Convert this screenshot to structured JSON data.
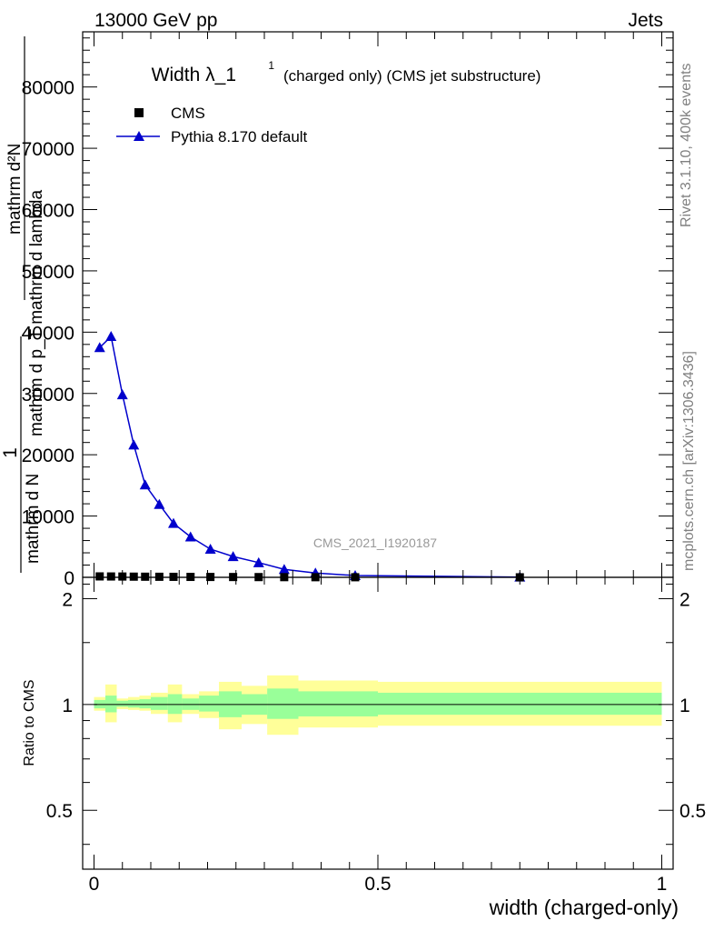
{
  "header": {
    "energy": "13000 GeV pp",
    "category": "Jets"
  },
  "side_labels": {
    "rivet": "Rivet 3.1.10,  400k events",
    "mcplots": "mcplots.cern.ch [arXiv:1306.3436]"
  },
  "watermark": "CMS_2021_I1920187",
  "chart_data": [
    {
      "type": "line",
      "title": "Width λ_1",
      "title_sup": "1",
      "subtitle": "(charged only) (CMS jet substructure)",
      "ylabel_numer": "1",
      "ylabel_denom": "mathrm d N",
      "ylabel_frac_numer": "mathrm d²N",
      "ylabel_frac_denom": "mathrm d p_T mathrm d lambda",
      "xlim": [
        -0.02,
        1.02
      ],
      "ylim": [
        0,
        89000
      ],
      "y_ticks": [
        0,
        10000,
        20000,
        30000,
        40000,
        50000,
        60000,
        70000,
        80000
      ],
      "y_tick_labels": [
        "0",
        "10000",
        "20000",
        "30000",
        "40000",
        "50000",
        "60000",
        "70000",
        "80000"
      ],
      "legend_position": "top-left",
      "series": [
        {
          "name": "CMS",
          "marker": "square",
          "color": "#000000",
          "x": [
            0.01,
            0.03,
            0.05,
            0.07,
            0.09,
            0.115,
            0.14,
            0.17,
            0.205,
            0.245,
            0.29,
            0.335,
            0.39,
            0.46,
            0.75
          ],
          "y": [
            150,
            140,
            130,
            110,
            100,
            90,
            80,
            70,
            60,
            50,
            40,
            30,
            20,
            15,
            5
          ]
        },
        {
          "name": "Pythia 8.170 default",
          "marker": "triangle",
          "color": "#0000cc",
          "x": [
            0.01,
            0.03,
            0.05,
            0.07,
            0.09,
            0.115,
            0.14,
            0.17,
            0.205,
            0.245,
            0.29,
            0.335,
            0.39,
            0.46,
            0.75
          ],
          "y": [
            37500,
            39300,
            29800,
            21600,
            15100,
            11900,
            8800,
            6600,
            4600,
            3400,
            2400,
            1300,
            700,
            300,
            50
          ]
        }
      ]
    },
    {
      "type": "area",
      "ylabel": "Ratio to CMS",
      "xlabel": "width (charged-only)",
      "xlim": [
        -0.02,
        1.02
      ],
      "ylim": [
        0.34,
        2.3
      ],
      "y_scale": "log",
      "y_ticks": [
        0.5,
        1,
        2
      ],
      "y_tick_labels": [
        "0.5",
        "1",
        "2"
      ],
      "x_ticks": [
        0,
        0.5,
        1
      ],
      "x_tick_labels": [
        "0",
        "0.5",
        "1"
      ],
      "reference": 1,
      "bins": [
        {
          "lo": 0.0,
          "hi": 0.02,
          "inner": [
            0.975,
            1.03
          ],
          "outer": [
            0.96,
            1.05
          ]
        },
        {
          "lo": 0.02,
          "hi": 0.04,
          "inner": [
            0.95,
            1.06
          ],
          "outer": [
            0.89,
            1.14
          ]
        },
        {
          "lo": 0.04,
          "hi": 0.06,
          "inner": [
            0.985,
            1.025
          ],
          "outer": [
            0.97,
            1.04
          ]
        },
        {
          "lo": 0.06,
          "hi": 0.08,
          "inner": [
            0.98,
            1.03
          ],
          "outer": [
            0.965,
            1.05
          ]
        },
        {
          "lo": 0.08,
          "hi": 0.1,
          "inner": [
            0.975,
            1.035
          ],
          "outer": [
            0.96,
            1.06
          ]
        },
        {
          "lo": 0.1,
          "hi": 0.13,
          "inner": [
            0.965,
            1.05
          ],
          "outer": [
            0.94,
            1.08
          ]
        },
        {
          "lo": 0.13,
          "hi": 0.155,
          "inner": [
            0.94,
            1.07
          ],
          "outer": [
            0.89,
            1.14
          ]
        },
        {
          "lo": 0.155,
          "hi": 0.185,
          "inner": [
            0.965,
            1.04
          ],
          "outer": [
            0.94,
            1.07
          ]
        },
        {
          "lo": 0.185,
          "hi": 0.22,
          "inner": [
            0.955,
            1.06
          ],
          "outer": [
            0.915,
            1.09
          ]
        },
        {
          "lo": 0.22,
          "hi": 0.26,
          "inner": [
            0.92,
            1.09
          ],
          "outer": [
            0.85,
            1.16
          ]
        },
        {
          "lo": 0.26,
          "hi": 0.305,
          "inner": [
            0.935,
            1.07
          ],
          "outer": [
            0.88,
            1.13
          ]
        },
        {
          "lo": 0.305,
          "hi": 0.36,
          "inner": [
            0.91,
            1.11
          ],
          "outer": [
            0.82,
            1.21
          ]
        },
        {
          "lo": 0.36,
          "hi": 0.5,
          "inner": [
            0.925,
            1.09
          ],
          "outer": [
            0.86,
            1.17
          ]
        },
        {
          "lo": 0.5,
          "hi": 1.0,
          "inner": [
            0.935,
            1.08
          ],
          "outer": [
            0.87,
            1.16
          ]
        }
      ]
    }
  ]
}
